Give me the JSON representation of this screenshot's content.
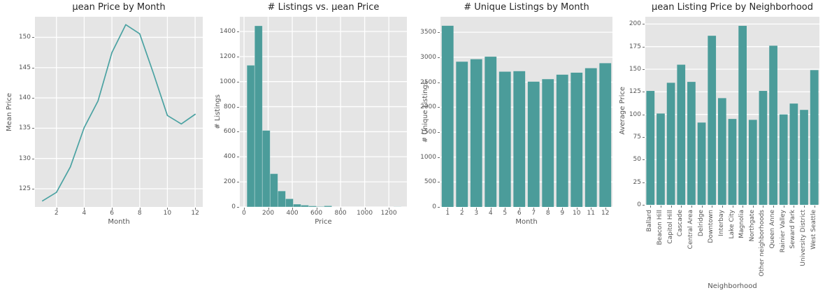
{
  "figure": {
    "kind": "matplotlib-style figure, 1 row x 4 subplots, ggplot theme"
  },
  "colors": {
    "plot_background": "#E5E5E5",
    "grid": "#FFFFFF",
    "bar_fill": "#4B9C9A",
    "line_stroke": "#4AA2A2",
    "tick_text": "#555555",
    "title_text": "#262626"
  },
  "chart_data": [
    {
      "type": "line",
      "title": "μean Price by Month",
      "xlabel": "Month",
      "ylabel": "Mean Price",
      "x": [
        1,
        2,
        3,
        4,
        5,
        6,
        7,
        8,
        9,
        10,
        11,
        12
      ],
      "y": [
        123.0,
        124.4,
        128.6,
        135.1,
        139.5,
        147.5,
        152.1,
        150.6,
        144.0,
        137.1,
        135.7,
        137.3
      ],
      "xticks": [
        2,
        4,
        6,
        8,
        10,
        12
      ],
      "yticks": [
        125,
        130,
        135,
        140,
        145,
        150
      ],
      "xlim": [
        0.45,
        12.55
      ],
      "ylim": [
        122,
        153.4
      ],
      "grid": true,
      "legend": "none"
    },
    {
      "type": "bar",
      "subtype": "histogram",
      "title": "# Listings vs. μean Price",
      "xlabel": "Price",
      "ylabel": "# Listings",
      "bins": {
        "start": 24,
        "width": 64,
        "counts": [
          1130,
          1445,
          610,
          265,
          127,
          65,
          22,
          14,
          8,
          3,
          9,
          0,
          0,
          0,
          0,
          0,
          0,
          0,
          0,
          1
        ]
      },
      "xticks": [
        0,
        200,
        400,
        600,
        800,
        1000,
        1200
      ],
      "yticks": [
        0,
        200,
        400,
        600,
        800,
        1000,
        1200,
        1400
      ],
      "xlim": [
        -35,
        1350
      ],
      "ylim": [
        0,
        1517
      ],
      "grid": true,
      "legend": "none"
    },
    {
      "type": "bar",
      "title": "# Unique Listings by Month",
      "xlabel": "Month",
      "ylabel": "# Unique Listings",
      "categories": [
        "1",
        "2",
        "3",
        "4",
        "5",
        "6",
        "7",
        "8",
        "9",
        "10",
        "11",
        "12"
      ],
      "values": [
        3630,
        2910,
        2960,
        3010,
        2710,
        2720,
        2510,
        2560,
        2650,
        2690,
        2780,
        2880
      ],
      "yticks": [
        0,
        500,
        1000,
        1500,
        2000,
        2500,
        3000,
        3500
      ],
      "ylim": [
        0,
        3810
      ],
      "bar_rel_width": 0.82,
      "grid": true,
      "legend": "none"
    },
    {
      "type": "bar",
      "title": "μean Listing Price by Neighborhood",
      "xlabel": "Neighborhood",
      "ylabel": "Average Price",
      "categories": [
        "Ballard",
        "Beacon Hill",
        "Capitol Hill",
        "Cascade",
        "Central Area",
        "Delridge",
        "Downtown",
        "Interbay",
        "Lake City",
        "Magnolia",
        "Northgate",
        "Other neighborhoods",
        "Queen Anne",
        "Rainier Valley",
        "Seward Park",
        "University District",
        "West Seattle"
      ],
      "values": [
        126,
        101,
        135,
        155,
        136,
        91,
        187,
        118,
        95,
        198,
        94,
        126,
        176,
        100,
        112,
        105,
        149
      ],
      "yticks": [
        0,
        25,
        50,
        75,
        100,
        125,
        150,
        175,
        200
      ],
      "ylim": [
        0,
        208
      ],
      "bar_rel_width": 0.8,
      "rotate_xticks": 90,
      "grid": true,
      "legend": "none"
    }
  ]
}
